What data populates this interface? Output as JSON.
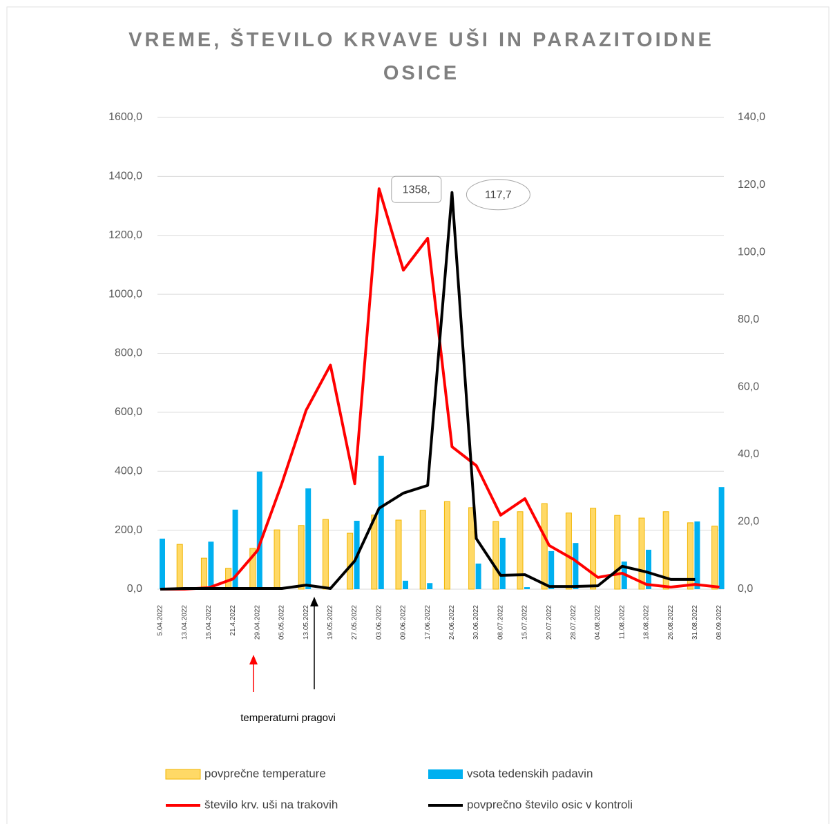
{
  "chart_data": {
    "type": "combo",
    "title": "VREME, ŠTEVILO KRVAVE UŠI IN PARAZITOIDNE OSICE",
    "annotation": "temperaturni pragovi",
    "categories": [
      "5.04.2022",
      "13.04.2022",
      "15.04.2022",
      "21.4.2022",
      "29.04.2022",
      "05.05.2022",
      "13.05.2022",
      "19.05.2022",
      "27.05.2022",
      "03.06.2022",
      "09.06.2022",
      "17.06.2022",
      "24.06.2022",
      "30.06.2022",
      "08.07.2022",
      "15.07.2022",
      "20.07.2022",
      "28.07.2022",
      "04.08.2022",
      "11.08.2022",
      "18.08.2022",
      "26.08.2022",
      "31.08.2022",
      "08.09.2022"
    ],
    "ylim": [
      0,
      1600
    ],
    "yticks": [
      {
        "value": 0,
        "label": "0,0"
      },
      {
        "value": 200,
        "label": "200,0"
      },
      {
        "value": 400,
        "label": "400,0"
      },
      {
        "value": 600,
        "label": "600,0"
      },
      {
        "value": 800,
        "label": "800,0"
      },
      {
        "value": 1000,
        "label": "1000,0"
      },
      {
        "value": 1200,
        "label": "1200,0"
      },
      {
        "value": 1400,
        "label": "1400,0"
      },
      {
        "value": 1600,
        "label": "1600,0"
      }
    ],
    "y2lim": [
      0,
      140
    ],
    "y2ticks": [
      {
        "value": 0,
        "label": "0,0"
      },
      {
        "value": 20,
        "label": "20,0"
      },
      {
        "value": 40,
        "label": "40,0"
      },
      {
        "value": 60,
        "label": "60,0"
      },
      {
        "value": 80,
        "label": "80,0"
      },
      {
        "value": 100,
        "label": "100,0"
      },
      {
        "value": 120,
        "label": "120,0"
      },
      {
        "value": 140,
        "label": "140,0"
      }
    ],
    "grid": true,
    "legend": "bottom",
    "series": [
      {
        "name": "povprečne temperature",
        "type": "bar",
        "axis": "y2",
        "color": "#ffd966",
        "edge": "#f0b400",
        "values": [
          null,
          13.3,
          9.2,
          6.2,
          12.1,
          17.6,
          18.9,
          20.7,
          16.6,
          22.0,
          20.5,
          23.4,
          26.0,
          24.2,
          20.1,
          23.0,
          25.4,
          22.6,
          24.0,
          21.9,
          21.1,
          23.0,
          19.7,
          18.7
        ]
      },
      {
        "name": "vsota tedenskih padavin",
        "type": "bar",
        "axis": "y2",
        "color": "#00b0f0",
        "values": [
          15.0,
          null,
          14.1,
          23.6,
          34.9,
          null,
          29.9,
          null,
          20.3,
          39.6,
          2.5,
          1.8,
          null,
          7.6,
          15.2,
          0.6,
          11.3,
          13.7,
          null,
          8.2,
          11.7,
          null,
          20.1,
          30.3
        ]
      },
      {
        "name": "število krv. uši na trakovih",
        "type": "line",
        "color": "#ff0000",
        "values": [
          0,
          0,
          5,
          35,
          131,
          358,
          607,
          760,
          358,
          1358,
          1082,
          1190,
          483,
          419,
          251,
          307,
          148,
          101,
          40,
          54,
          16,
          7,
          16,
          7
        ],
        "value_labels": [
          null,
          null,
          null,
          null,
          null,
          null,
          null,
          null,
          null,
          "1358,",
          null,
          null,
          null,
          null,
          null,
          null,
          null,
          null,
          null,
          null,
          null,
          null,
          null,
          null
        ]
      },
      {
        "name": "povprečno število osic v kontroli",
        "type": "line",
        "axis": "y2",
        "color": "#000000",
        "values": [
          0,
          0.2,
          0.2,
          0.2,
          0.2,
          0.2,
          1.2,
          0.2,
          8.4,
          24.0,
          28.5,
          30.8,
          117.7,
          15.0,
          4.1,
          4.3,
          0.8,
          0.8,
          1.0,
          6.8,
          5.1,
          2.9,
          2.9,
          null
        ],
        "value_labels": [
          null,
          null,
          null,
          null,
          null,
          null,
          null,
          null,
          null,
          null,
          null,
          null,
          "117,7",
          null,
          null,
          null,
          null,
          null,
          null,
          null,
          null,
          null,
          null,
          null
        ]
      }
    ]
  }
}
